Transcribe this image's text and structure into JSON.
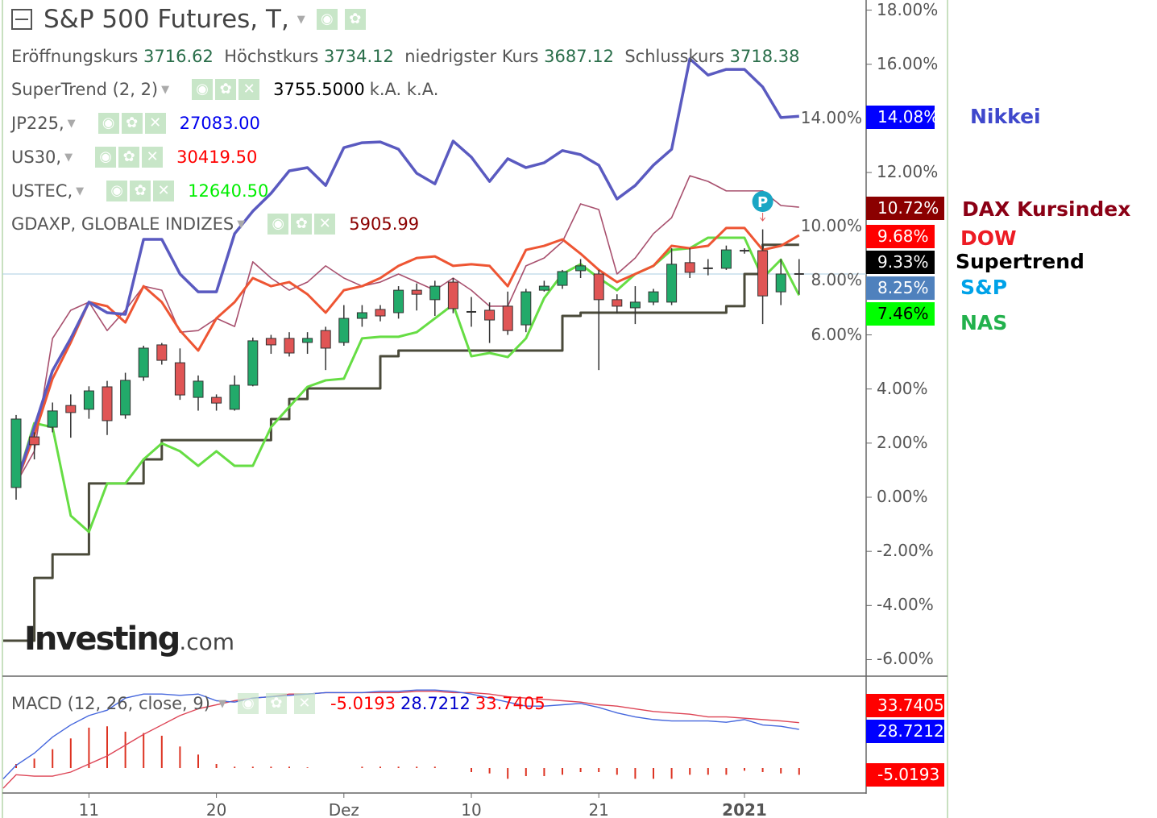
{
  "header": {
    "title": "S&P 500 Futures, T,",
    "ohlc": [
      {
        "label": "Eröffnungskurs",
        "value": "3716.62"
      },
      {
        "label": "Höchstkurs",
        "value": "3734.12"
      },
      {
        "label": "niedrigster Kurs",
        "value": "3687.12"
      },
      {
        "label": "Schlusskurs",
        "value": "3718.38"
      }
    ],
    "indicators": [
      {
        "name": "SuperTrend (2, 2)",
        "value": "3755.5000",
        "extra": "k.A.  k.A.",
        "color": "#000000"
      },
      {
        "name": "JP225,",
        "value": "27083.00",
        "color": "#0000ee"
      },
      {
        "name": "US30,",
        "value": "30419.50",
        "color": "#ff0000"
      },
      {
        "name": "USTEC,",
        "value": "12640.50",
        "color": "#00ee00"
      },
      {
        "name": "GDAXP, GLOBALE INDIZES",
        "value": "5905.99",
        "color": "#8b0000"
      }
    ]
  },
  "icons": {
    "collapse": "minus-square-icon",
    "eye": "eye-icon",
    "gear": "gear-icon",
    "close": "close-icon",
    "dropdown": "triangle-down-icon"
  },
  "logo": {
    "text": "Investing",
    "suffix": ".com"
  },
  "legend": [
    {
      "label": "Nikkei",
      "badge": "14.08%",
      "color": "#3f48cc",
      "badge_bg": "#0000ff",
      "badge_fg": "#ffffff"
    },
    {
      "label": "DAX Kursindex",
      "badge": "10.72%",
      "color": "#8b0015",
      "badge_bg": "#8b0000",
      "badge_fg": "#ffffff"
    },
    {
      "label": "DOW",
      "badge": "9.68%",
      "color": "#ed1c24",
      "badge_bg": "#ff0000",
      "badge_fg": "#ffffff"
    },
    {
      "label": "Supertrend",
      "badge": "9.33%",
      "color": "#000000",
      "badge_bg": "#000000",
      "badge_fg": "#ffffff"
    },
    {
      "label": "S&P",
      "badge": "8.25%",
      "color": "#00a2e8",
      "badge_bg": "#4f81bd",
      "badge_fg": "#ffffff"
    },
    {
      "label": "NAS",
      "badge": "7.46%",
      "color": "#22b14c",
      "badge_bg": "#00ff00",
      "badge_fg": "#000000"
    }
  ],
  "macd": {
    "title": "MACD (12, 26, close, 9)",
    "hist_value": "-5.0193",
    "macd_value": "28.7212",
    "signal_value": "33.7405",
    "badges": [
      {
        "text": "33.7405",
        "bg": "#ff0000"
      },
      {
        "text": "28.7212",
        "bg": "#0000ff"
      },
      {
        "text": "-5.0193",
        "bg": "#ff0000"
      }
    ]
  },
  "chart_data": {
    "type": "line",
    "y_ticks": [
      "18.00%",
      "16.00%",
      "14.00%",
      "12.00%",
      "10.00%",
      "8.00%",
      "6.00%",
      "4.00%",
      "2.00%",
      "0.00%",
      "-2.00%",
      "-4.00%",
      "-6.00%"
    ],
    "ylim": [
      -6.5,
      18.4
    ],
    "x_ticks": [
      {
        "index": 4,
        "label": "11"
      },
      {
        "index": 11,
        "label": "20"
      },
      {
        "index": 18,
        "label": "Dez"
      },
      {
        "index": 25,
        "label": "10"
      },
      {
        "index": 32,
        "label": "21"
      },
      {
        "index": 40,
        "label": "2021"
      }
    ],
    "crosshair_y": 8.25,
    "series": {
      "nikkei": [
        0.51,
        2.59,
        4.68,
        5.87,
        7.21,
        6.82,
        6.76,
        9.53,
        9.53,
        8.25,
        7.59,
        7.59,
        9.74,
        10.57,
        11.23,
        12.06,
        12.18,
        11.52,
        12.92,
        13.1,
        13.13,
        12.86,
        11.97,
        11.58,
        13.16,
        12.57,
        11.67,
        12.51,
        12.18,
        12.36,
        12.81,
        12.66,
        12.27,
        11.02,
        11.52,
        12.27,
        12.86,
        16.2,
        15.6,
        15.81,
        15.81,
        15.16,
        14.03,
        14.08
      ],
      "dax": [
        0.51,
        1.7,
        5.87,
        6.91,
        7.21,
        6.16,
        6.91,
        7.8,
        7.65,
        6.1,
        6.16,
        6.61,
        6.31,
        8.7,
        8.1,
        7.65,
        7.95,
        8.55,
        8.1,
        7.8,
        7.95,
        8.25,
        7.95,
        7.65,
        8.1,
        7.65,
        7.06,
        7.06,
        8.55,
        8.84,
        9.44,
        10.84,
        10.63,
        8.25,
        8.84,
        9.74,
        10.33,
        11.88,
        11.67,
        11.32,
        11.32,
        11.32,
        10.78,
        10.72
      ],
      "dow": [
        0.51,
        2.29,
        4.38,
        5.72,
        7.21,
        7.06,
        6.46,
        7.8,
        7.21,
        6.16,
        5.42,
        6.61,
        7.21,
        8.1,
        7.8,
        7.95,
        7.5,
        6.82,
        7.65,
        7.8,
        8.1,
        8.55,
        8.84,
        8.9,
        8.55,
        8.61,
        8.55,
        7.8,
        9.14,
        9.29,
        9.53,
        9.0,
        8.4,
        7.95,
        8.25,
        8.55,
        9.29,
        9.2,
        9.29,
        9.95,
        9.95,
        9.14,
        9.29,
        9.68
      ],
      "nas": [
        0.51,
        2.74,
        2.59,
        -0.68,
        -1.28,
        0.51,
        0.51,
        1.4,
        1.99,
        1.7,
        1.16,
        1.7,
        1.16,
        1.16,
        2.59,
        3.34,
        4.08,
        4.32,
        4.38,
        5.87,
        5.93,
        5.93,
        6.1,
        6.61,
        7.12,
        5.21,
        5.33,
        5.18,
        5.87,
        7.36,
        8.25,
        8.61,
        8.1,
        7.65,
        8.25,
        8.55,
        9.14,
        9.2,
        9.59,
        9.59,
        9.59,
        8.1,
        8.78,
        7.46
      ],
      "supertrend": [
        -5.3,
        -2.98,
        -2.11,
        -2.11,
        0.51,
        0.51,
        0.51,
        1.4,
        2.11,
        2.11,
        2.11,
        2.11,
        2.11,
        2.11,
        2.89,
        3.63,
        4.02,
        4.02,
        4.02,
        4.02,
        5.21,
        5.42,
        5.42,
        5.42,
        5.42,
        5.42,
        5.42,
        5.42,
        5.42,
        5.42,
        6.7,
        6.82,
        6.82,
        6.82,
        6.82,
        6.82,
        6.82,
        6.82,
        6.82,
        7.06,
        8.25,
        9.33,
        9.33,
        9.33
      ]
    },
    "series_colors": {
      "nikkei": "#5a5ac0",
      "dax": "#a8506e",
      "dow": "#ee5533",
      "nas": "#66dd44",
      "supertrend": "#4a4a3a"
    },
    "candles": [
      [
        0.36,
        3.04,
        -0.09,
        2.89
      ],
      [
        2.23,
        2.4,
        1.4,
        1.94
      ],
      [
        2.59,
        3.5,
        2.4,
        3.19
      ],
      [
        3.39,
        3.8,
        2.2,
        3.13
      ],
      [
        3.25,
        4.1,
        2.9,
        3.93
      ],
      [
        4.08,
        4.3,
        2.3,
        2.83
      ],
      [
        3.04,
        4.6,
        2.9,
        4.32
      ],
      [
        4.44,
        5.6,
        4.3,
        5.51
      ],
      [
        5.63,
        5.7,
        4.9,
        5.06
      ],
      [
        4.97,
        5.5,
        3.6,
        3.78
      ],
      [
        3.69,
        4.5,
        3.2,
        4.29
      ],
      [
        3.69,
        3.8,
        3.2,
        3.48
      ],
      [
        3.25,
        4.5,
        3.2,
        4.14
      ],
      [
        4.14,
        5.9,
        4.1,
        5.78
      ],
      [
        5.87,
        6.0,
        5.3,
        5.63
      ],
      [
        5.87,
        6.1,
        5.2,
        5.33
      ],
      [
        5.72,
        6.1,
        5.3,
        5.87
      ],
      [
        6.16,
        6.3,
        4.7,
        5.51
      ],
      [
        5.72,
        7.1,
        5.6,
        6.61
      ],
      [
        6.61,
        7.1,
        6.3,
        6.82
      ],
      [
        6.94,
        7.1,
        6.5,
        6.7
      ],
      [
        6.82,
        7.8,
        6.6,
        7.65
      ],
      [
        7.65,
        7.9,
        6.9,
        7.5
      ],
      [
        7.3,
        8.0,
        6.7,
        7.8
      ],
      [
        7.95,
        8.1,
        6.8,
        6.97
      ],
      [
        6.85,
        7.4,
        6.3,
        6.85
      ],
      [
        6.91,
        7.2,
        5.7,
        6.55
      ],
      [
        7.06,
        7.6,
        6.0,
        6.16
      ],
      [
        6.37,
        7.7,
        6.1,
        7.59
      ],
      [
        7.65,
        8.0,
        7.6,
        7.8
      ],
      [
        7.83,
        8.4,
        7.7,
        8.34
      ],
      [
        8.37,
        8.8,
        8.1,
        8.55
      ],
      [
        8.25,
        8.4,
        4.7,
        7.3
      ],
      [
        7.3,
        7.5,
        6.8,
        7.06
      ],
      [
        7.0,
        7.8,
        6.4,
        7.21
      ],
      [
        7.21,
        7.7,
        7.1,
        7.59
      ],
      [
        7.21,
        9.2,
        7.1,
        8.61
      ],
      [
        8.67,
        9.2,
        8.1,
        8.31
      ],
      [
        8.46,
        8.8,
        8.2,
        8.46
      ],
      [
        8.46,
        9.3,
        8.4,
        9.14
      ],
      [
        9.11,
        9.2,
        9.0,
        9.11
      ],
      [
        9.11,
        9.9,
        6.4,
        7.44
      ],
      [
        7.59,
        8.8,
        7.1,
        8.25
      ],
      [
        8.22,
        8.8,
        7.5,
        8.25
      ]
    ],
    "candle_colors": {
      "up": "#22aa6a",
      "down": "#e05555"
    },
    "macd_panel": {
      "macd": [
        2,
        11,
        23,
        32,
        39,
        43,
        52,
        55,
        55,
        54,
        55,
        50,
        49,
        52,
        53,
        54,
        55,
        56,
        56,
        56,
        57,
        57,
        58,
        58,
        57,
        55,
        52,
        49,
        46,
        46,
        47,
        48,
        45,
        41,
        38,
        36,
        35,
        35,
        35,
        34,
        36,
        32,
        31,
        28.72
      ],
      "signal": [
        -5,
        -6,
        -6,
        -3,
        3,
        9,
        17,
        25,
        32,
        39,
        44,
        47,
        50,
        52,
        53,
        55,
        55,
        56,
        56,
        56,
        56,
        56,
        57,
        57,
        56,
        56,
        55,
        53,
        52,
        51,
        50,
        49,
        47,
        46,
        44,
        42,
        41,
        40,
        38,
        38,
        37,
        36,
        35,
        33.74
      ],
      "histogram": [
        3,
        7,
        14,
        22,
        30,
        31,
        27,
        26,
        24,
        16,
        10,
        3,
        1,
        1,
        1,
        1,
        0.5,
        0,
        0,
        1,
        1,
        1,
        1,
        1,
        0,
        -3,
        -4,
        -8,
        -6,
        -6,
        -5,
        -3,
        -3,
        -5,
        -8,
        -8,
        -8,
        -5,
        -5,
        -5,
        -2,
        -3,
        -4,
        -5.02
      ],
      "macd_color": "#4466dd",
      "signal_color": "#dd4455",
      "hist_color": "#dd3322"
    }
  }
}
